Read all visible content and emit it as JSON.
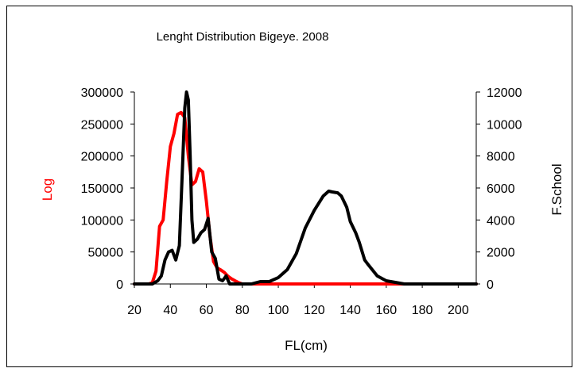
{
  "chart_data": {
    "type": "line",
    "title": "Lenght Distribution Bigeye. 2008",
    "xlabel": "FL(cm)",
    "ylabel_left": "Log",
    "ylabel_right": "F.School",
    "xlim": [
      20,
      210
    ],
    "ylim_left": [
      0,
      300000
    ],
    "ylim_right": [
      0,
      12000
    ],
    "xticks": [
      "20",
      "40",
      "60",
      "80",
      "100",
      "120",
      "140",
      "160",
      "180",
      "200"
    ],
    "yticks_left": [
      "0",
      "50000",
      "100000",
      "150000",
      "200000",
      "250000",
      "300000"
    ],
    "yticks_right": [
      "0",
      "2000",
      "4000",
      "6000",
      "8000",
      "10000",
      "12000"
    ],
    "grid": false,
    "legend": "none",
    "series": [
      {
        "axis": "left",
        "color": "#ff0000",
        "x": [
          20,
          28,
          30,
          32,
          34,
          36,
          38,
          40,
          42,
          44,
          46,
          48,
          50,
          52,
          54,
          56,
          58,
          60,
          62,
          64,
          66,
          68,
          70,
          72,
          74,
          76,
          78,
          80,
          90,
          100,
          120,
          140,
          160,
          180,
          200,
          210
        ],
        "y": [
          0,
          0,
          2000,
          20000,
          90000,
          100000,
          160000,
          215000,
          235000,
          265000,
          268000,
          260000,
          200000,
          155000,
          160000,
          180000,
          175000,
          130000,
          75000,
          35000,
          25000,
          22000,
          18000,
          12000,
          8000,
          5000,
          2000,
          0,
          0,
          0,
          0,
          0,
          0,
          0,
          0,
          0
        ]
      },
      {
        "axis": "right",
        "color": "#000000",
        "x": [
          20,
          30,
          33,
          35,
          37,
          39,
          41,
          43,
          45,
          47,
          48,
          49,
          50,
          51,
          52,
          53,
          55,
          57,
          59,
          61,
          63,
          65,
          67,
          69,
          71,
          73,
          75,
          77,
          80,
          85,
          90,
          95,
          100,
          105,
          110,
          115,
          120,
          125,
          128,
          130,
          133,
          135,
          138,
          140,
          143,
          145,
          148,
          150,
          155,
          160,
          165,
          170,
          180,
          190,
          200,
          210
        ],
        "y": [
          0,
          0,
          200,
          500,
          1500,
          2000,
          2100,
          1500,
          2400,
          8000,
          11000,
          12000,
          11500,
          8000,
          4000,
          2600,
          2800,
          3200,
          3400,
          4100,
          2000,
          1600,
          300,
          200,
          500,
          0,
          0,
          0,
          0,
          0,
          150,
          150,
          400,
          900,
          1900,
          3500,
          4600,
          5500,
          5800,
          5750,
          5700,
          5500,
          4800,
          3900,
          3200,
          2600,
          1500,
          1200,
          500,
          200,
          100,
          0,
          0,
          0,
          0,
          0
        ]
      }
    ]
  }
}
